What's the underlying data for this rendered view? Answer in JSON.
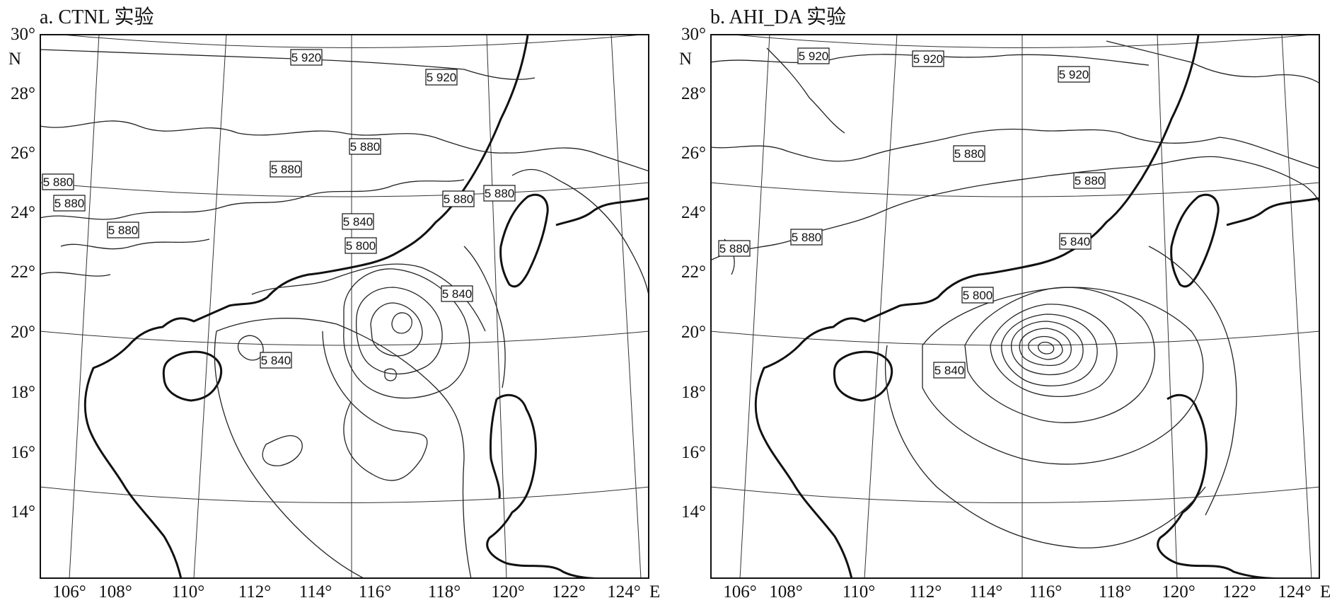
{
  "panels": [
    {
      "id": "a",
      "title": "a. CTNL 实验",
      "contour_labels": [
        "5 920",
        "5 920",
        "5 880",
        "5 880",
        "5 880",
        "5 880",
        "5 880",
        "5 880",
        "5 880",
        "5 840",
        "5 800",
        "5 840",
        "5 840"
      ]
    },
    {
      "id": "b",
      "title": "b. AHI_DA 实验",
      "contour_labels": [
        "5 920",
        "5 920",
        "5 920",
        "5 880",
        "5 880",
        "5 880",
        "5 880",
        "5 840",
        "5 800",
        "5 840"
      ]
    }
  ],
  "axes": {
    "lat_labels": [
      "30°",
      "28°",
      "26°",
      "24°",
      "22°",
      "20°",
      "18°",
      "16°",
      "14°"
    ],
    "lat_unit": "N",
    "lon_labels": [
      "106°",
      "108°",
      "110°",
      "112°",
      "114°",
      "116°",
      "118°",
      "120°",
      "122°",
      "124°"
    ],
    "lon_unit": "E"
  }
}
